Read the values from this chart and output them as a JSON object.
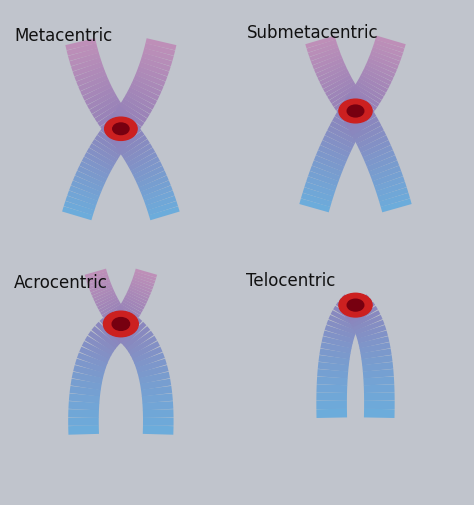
{
  "labels": [
    "Metacentric",
    "Submetacentric",
    "Acrocentric",
    "Telocentric"
  ],
  "bg_colors_top": [
    "#eceef2",
    "#d4d9e4"
  ],
  "bg_colors_bot": [
    "#d4d9e4",
    "#e8eaee"
  ],
  "arm_pink": "#c090b8",
  "arm_blue": "#6aaedd",
  "arm_purple": "#9080b8",
  "cent_red": "#cc2020",
  "cent_dark": "#770010",
  "text_color": "#111111",
  "label_fontsize": 12,
  "fig_width": 4.74,
  "fig_height": 5.05
}
